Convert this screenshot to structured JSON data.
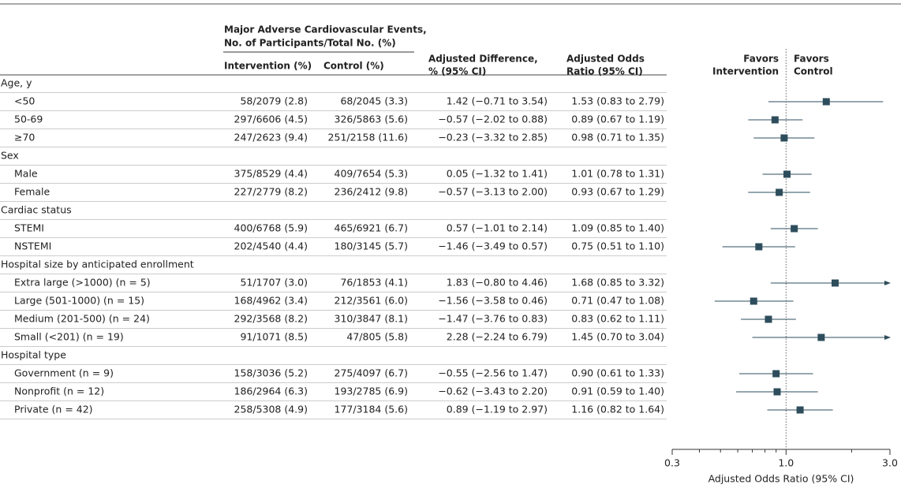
{
  "chart_data": {
    "type": "forest",
    "group_header": [
      "Major Adverse Cardiovascular Events,",
      "No. of Participants/Total No. (%)"
    ],
    "columns": {
      "intervention": [
        "Intervention (%)"
      ],
      "control": [
        "Control (%)"
      ],
      "difference": [
        "Adjusted Difference,",
        "% (95% CI)"
      ],
      "odds_ratio": [
        "Adjusted Odds",
        "Ratio (95% CI)"
      ]
    },
    "favors": {
      "left": [
        "Favors",
        "Intervention"
      ],
      "right": [
        "Favors",
        "Control"
      ]
    },
    "x_label": "Adjusted Odds Ratio (95% CI)",
    "log_x": true,
    "xlim": [
      0.3,
      3.0
    ],
    "xticks": [
      0.3,
      {
        "value": 1,
        "label": "1.0"
      },
      {
        "value": 3,
        "label": "3.0"
      }
    ],
    "minor_xticks": [
      0.4,
      0.5,
      0.6,
      0.7,
      0.8,
      0.9,
      2
    ],
    "reference_line": 1,
    "color": "#2e4d5c",
    "rows": [
      {
        "label": "Age, y"
      },
      {
        "label": "<50",
        "intervention": "58/2079 (2.8)",
        "control": "68/2045 (3.3)",
        "difference": "1.42 (−0.71 to 3.54)",
        "or_label": "1.53 (0.83 to 2.79)",
        "or": 1.53,
        "ci": [
          0.83,
          2.79
        ]
      },
      {
        "label": "50-69",
        "intervention": "297/6606 (4.5)",
        "control": "326/5863 (5.6)",
        "difference": "−0.57 (−2.02 to 0.88)",
        "or_label": "0.89 (0.67 to 1.19)",
        "or": 0.89,
        "ci": [
          0.67,
          1.19
        ]
      },
      {
        "label": "≥70",
        "intervention": "247/2623 (9.4)",
        "control": "251/2158 (11.6)",
        "difference": "−0.23 (−3.32 to 2.85)",
        "or_label": "0.98 (0.71 to 1.35)",
        "or": 0.98,
        "ci": [
          0.71,
          1.35
        ]
      },
      {
        "label": "Sex"
      },
      {
        "label": "Male",
        "intervention": "375/8529 (4.4)",
        "control": "409/7654 (5.3)",
        "difference": "0.05 (−1.32 to 1.41)",
        "or_label": "1.01 (0.78 to 1.31)",
        "or": 1.01,
        "ci": [
          0.78,
          1.31
        ]
      },
      {
        "label": "Female",
        "intervention": "227/2779 (8.2)",
        "control": "236/2412 (9.8)",
        "difference": "−0.57 (−3.13 to 2.00)",
        "or_label": "0.93 (0.67 to 1.29)",
        "or": 0.93,
        "ci": [
          0.67,
          1.29
        ]
      },
      {
        "label": "Cardiac status"
      },
      {
        "label": "STEMI",
        "intervention": "400/6768 (5.9)",
        "control": "465/6921 (6.7)",
        "difference": "0.57 (−1.01 to 2.14)",
        "or_label": "1.09 (0.85 to 1.40)",
        "or": 1.09,
        "ci": [
          0.85,
          1.4
        ]
      },
      {
        "label": "NSTEMI",
        "intervention": "202/4540 (4.4)",
        "control": "180/3145 (5.7)",
        "difference": "−1.46 (−3.49 to 0.57)",
        "or_label": "0.75 (0.51 to 1.10)",
        "or": 0.75,
        "ci": [
          0.51,
          1.1
        ]
      },
      {
        "label": "Hospital size by anticipated enrollment"
      },
      {
        "label": "Extra large (>1000) (n = 5)",
        "intervention": "51/1707 (3.0)",
        "control": "76/1853 (4.1)",
        "difference": "1.83 (−0.80 to 4.46)",
        "or_label": "1.68 (0.85 to 3.32)",
        "or": 1.68,
        "ci": [
          0.85,
          3.32
        ]
      },
      {
        "label": "Large (501-1000) (n = 15)",
        "intervention": "168/4962 (3.4)",
        "control": "212/3561 (6.0)",
        "difference": "−1.56 (−3.58 to 0.46)",
        "or_label": "0.71 (0.47 to 1.08)",
        "or": 0.71,
        "ci": [
          0.47,
          1.08
        ]
      },
      {
        "label": "Medium (201-500) (n = 24)",
        "intervention": "292/3568 (8.2)",
        "control": "310/3847 (8.1)",
        "difference": "−1.47 (−3.76 to 0.83)",
        "or_label": "0.83 (0.62 to 1.11)",
        "or": 0.83,
        "ci": [
          0.62,
          1.11
        ]
      },
      {
        "label": "Small (<201) (n = 19)",
        "intervention": "91/1071 (8.5)",
        "control": "47/805 (5.8)",
        "difference": "2.28 (−2.24 to 6.79)",
        "or_label": "1.45 (0.70 to 3.04)",
        "or": 1.45,
        "ci": [
          0.7,
          3.04
        ]
      },
      {
        "label": "Hospital type"
      },
      {
        "label": "Government (n = 9)",
        "intervention": "158/3036 (5.2)",
        "control": "275/4097 (6.7)",
        "difference": "−0.55 (−2.56 to 1.47)",
        "or_label": "0.90 (0.61 to 1.33)",
        "or": 0.9,
        "ci": [
          0.61,
          1.33
        ]
      },
      {
        "label": "Nonprofit (n = 12)",
        "intervention": "186/2964 (6.3)",
        "control": "193/2785 (6.9)",
        "difference": "−0.62 (−3.43 to 2.20)",
        "or_label": "0.91 (0.59 to 1.40)",
        "or": 0.91,
        "ci": [
          0.59,
          1.4
        ]
      },
      {
        "label": "Private (n = 42)",
        "intervention": "258/5308 (4.9)",
        "control": "177/3184 (5.6)",
        "difference": "0.89 (−1.19 to 2.97)",
        "or_label": "1.16 (0.82 to 1.64)",
        "or": 1.16,
        "ci": [
          0.82,
          1.64
        ]
      }
    ]
  }
}
